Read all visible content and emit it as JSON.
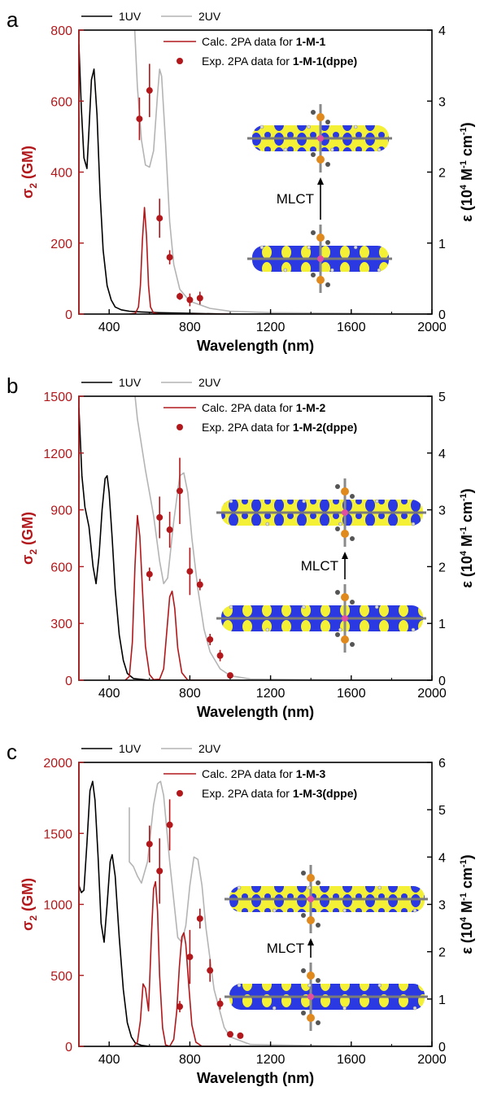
{
  "colors": {
    "red": "#b2181b",
    "uv1": "#000000",
    "uv2": "#b4b4b4",
    "orbital_blue": "#1f2fe0",
    "orbital_yellow": "#f2ef2a"
  },
  "chart_data": [
    {
      "type": "line",
      "panel_label": "a",
      "xlabel": "Wavelength (nm)",
      "ylabel_left": {
        "main": "σ",
        "sub": "2",
        "rest": " (GM)"
      },
      "ylabel_right": {
        "a": "ε (10",
        "s1": "4",
        "b": " M",
        "s2": "-1",
        "c": " cm",
        "s3": "-1",
        "d": ")"
      },
      "xlim": [
        250,
        2000
      ],
      "xticks": [
        400,
        800,
        1200,
        1600,
        2000
      ],
      "ylim_left": [
        0,
        800
      ],
      "yticks_left": [
        0,
        200,
        400,
        600,
        800
      ],
      "ylim_right": [
        0,
        4
      ],
      "yticks_right": [
        0,
        1,
        2,
        3,
        4
      ],
      "legend_top": [
        "1UV",
        "2UV"
      ],
      "legend_calc": {
        "text": "Calc. 2PA data for ",
        "bold": "1-M-1"
      },
      "legend_exp": {
        "text": "Exp. 2PA data for ",
        "bold": "1-M-1(dppe)"
      },
      "annotation": "MLCT",
      "series": [
        {
          "name": "1UV",
          "axis": "right",
          "x": [
            250,
            262,
            275,
            290,
            300,
            312,
            325,
            340,
            355,
            370,
            390,
            410,
            430,
            460,
            500,
            560,
            650,
            800,
            1000,
            2000
          ],
          "y": [
            3.8,
            2.9,
            2.2,
            2.05,
            2.6,
            3.3,
            3.45,
            2.8,
            1.7,
            0.9,
            0.4,
            0.2,
            0.1,
            0.06,
            0.04,
            0.03,
            0.02,
            0.01,
            0.0,
            0.0
          ]
        },
        {
          "name": "2UV",
          "axis": "right",
          "x": [
            500,
            520,
            540,
            560,
            580,
            600,
            620,
            640,
            650,
            660,
            680,
            700,
            720,
            750,
            800,
            900,
            1000,
            1200,
            1600,
            2000
          ],
          "y": [
            6.0,
            4.4,
            3.2,
            2.45,
            2.1,
            2.07,
            2.3,
            3.1,
            3.45,
            3.35,
            2.4,
            1.3,
            0.7,
            0.35,
            0.18,
            0.08,
            0.04,
            0.02,
            0.01,
            0.0
          ]
        },
        {
          "name": "Calc. 2PA data",
          "axis": "left",
          "x": [
            500,
            530,
            545,
            555,
            565,
            575,
            585,
            595,
            605,
            620,
            650,
            700,
            1000
          ],
          "y": [
            0,
            2,
            20,
            80,
            210,
            300,
            220,
            80,
            20,
            3,
            0,
            0,
            0
          ]
        },
        {
          "name": "Exp. 2PA data",
          "axis": "left",
          "kind": "scatter",
          "x": [
            550,
            600,
            650,
            700,
            750,
            800,
            850
          ],
          "y": [
            550,
            630,
            270,
            160,
            50,
            40,
            45
          ],
          "err": [
            60,
            75,
            55,
            20,
            10,
            18,
            18
          ]
        }
      ]
    },
    {
      "type": "line",
      "panel_label": "b",
      "xlabel": "Wavelength (nm)",
      "ylabel_left": {
        "main": "σ",
        "sub": "2",
        "rest": " (GM)"
      },
      "ylabel_right": {
        "a": "ε (10",
        "s1": "4",
        "b": " M",
        "s2": "-1",
        "c": " cm",
        "s3": "-1",
        "d": ")"
      },
      "xlim": [
        250,
        2000
      ],
      "xticks": [
        400,
        800,
        1200,
        1600,
        2000
      ],
      "ylim_left": [
        0,
        1500
      ],
      "yticks_left": [
        0,
        300,
        600,
        900,
        1200,
        1500
      ],
      "ylim_right": [
        0,
        5
      ],
      "yticks_right": [
        0,
        1,
        2,
        3,
        4,
        5
      ],
      "legend_top": [
        "1UV",
        "2UV"
      ],
      "legend_calc": {
        "text": "Calc. 2PA data for ",
        "bold": "1-M-2"
      },
      "legend_exp": {
        "text": "Exp. 2PA data for ",
        "bold": "1-M-2(dppe)"
      },
      "annotation": "MLCT",
      "series": [
        {
          "name": "1UV",
          "axis": "right",
          "x": [
            250,
            265,
            280,
            300,
            320,
            335,
            350,
            365,
            380,
            390,
            400,
            415,
            430,
            450,
            470,
            490,
            520,
            600,
            2000
          ],
          "y": [
            4.8,
            3.6,
            3.05,
            2.7,
            2.0,
            1.7,
            2.2,
            3.0,
            3.55,
            3.6,
            3.3,
            2.5,
            1.6,
            0.8,
            0.35,
            0.12,
            0.03,
            0.0,
            0.0
          ]
        },
        {
          "name": "2UV",
          "axis": "right",
          "x": [
            500,
            540,
            580,
            620,
            650,
            670,
            690,
            720,
            750,
            770,
            790,
            810,
            840,
            870,
            900,
            950,
            1000,
            1100,
            1600,
            2000
          ],
          "y": [
            6.0,
            4.6,
            3.7,
            2.9,
            2.1,
            1.7,
            1.8,
            2.8,
            3.6,
            3.65,
            3.3,
            2.5,
            1.6,
            0.9,
            0.5,
            0.2,
            0.08,
            0.02,
            0.0,
            0.0
          ]
        },
        {
          "name": "Calc. 2PA data",
          "axis": "left",
          "x": [
            480,
            500,
            515,
            528,
            540,
            552,
            565,
            580,
            600,
            620,
            650,
            670,
            685,
            700,
            712,
            725,
            740,
            760,
            790,
            1000
          ],
          "y": [
            0,
            20,
            200,
            600,
            870,
            760,
            480,
            180,
            30,
            3,
            5,
            60,
            250,
            440,
            470,
            380,
            170,
            40,
            0,
            0
          ]
        },
        {
          "name": "Exp. 2PA data",
          "axis": "left",
          "kind": "scatter",
          "x": [
            600,
            650,
            700,
            750,
            800,
            850,
            900,
            950,
            1000
          ],
          "y": [
            560,
            860,
            795,
            1000,
            575,
            505,
            215,
            130,
            25
          ],
          "err": [
            35,
            110,
            95,
            175,
            125,
            30,
            30,
            30,
            8
          ]
        }
      ]
    },
    {
      "type": "line",
      "panel_label": "c",
      "xlabel": "Wavelength (nm)",
      "ylabel_left": {
        "main": "σ",
        "sub": "2",
        "rest": " (GM)"
      },
      "ylabel_right": {
        "a": "ε (10",
        "s1": "4",
        "b": " M",
        "s2": "-1",
        "c": " cm",
        "s3": "-1",
        "d": ")"
      },
      "xlim": [
        250,
        2000
      ],
      "xticks": [
        400,
        800,
        1200,
        1600,
        2000
      ],
      "ylim_left": [
        0,
        2000
      ],
      "yticks_left": [
        0,
        500,
        1000,
        1500,
        2000
      ],
      "ylim_right": [
        0,
        6
      ],
      "yticks_right": [
        0,
        1,
        2,
        3,
        4,
        5,
        6
      ],
      "legend_top": [
        "1UV",
        "2UV"
      ],
      "legend_calc": {
        "text": "Calc. 2PA data for ",
        "bold": "1-M-3"
      },
      "legend_exp": {
        "text": "Exp. 2PA data for ",
        "bold": "1-M-3(dppe)"
      },
      "annotation": "MLCT",
      "series": [
        {
          "name": "1UV",
          "axis": "right",
          "x": [
            250,
            262,
            275,
            290,
            305,
            318,
            330,
            345,
            360,
            375,
            390,
            405,
            415,
            430,
            450,
            470,
            490,
            510,
            530,
            560,
            600,
            2000
          ],
          "y": [
            3.4,
            3.25,
            3.3,
            4.3,
            5.4,
            5.6,
            5.2,
            4.0,
            2.6,
            2.2,
            3.0,
            3.9,
            4.05,
            3.6,
            2.3,
            1.2,
            0.5,
            0.2,
            0.07,
            0.02,
            0.0,
            0.0
          ]
        },
        {
          "name": "2UV",
          "axis": "right",
          "x": [
            500,
            500,
            520,
            540,
            560,
            590,
            620,
            640,
            655,
            670,
            700,
            740,
            760,
            780,
            800,
            820,
            840,
            860,
            880,
            920,
            970,
            1000,
            1100,
            1600,
            2000
          ],
          "y": [
            5.05,
            3.9,
            3.8,
            3.6,
            3.45,
            3.9,
            5.1,
            5.55,
            5.6,
            5.3,
            3.9,
            2.3,
            2.2,
            2.55,
            3.4,
            4.0,
            3.95,
            3.4,
            2.5,
            1.2,
            0.4,
            0.2,
            0.04,
            0.0,
            0.0
          ]
        },
        {
          "name": "Calc. 2PA data",
          "axis": "left",
          "x": [
            520,
            540,
            555,
            568,
            580,
            595,
            610,
            620,
            630,
            640,
            650,
            665,
            680,
            700,
            720,
            735,
            748,
            760,
            770,
            780,
            795,
            810,
            830,
            860,
            1000
          ],
          "y": [
            0,
            30,
            180,
            440,
            410,
            250,
            800,
            1110,
            1160,
            950,
            500,
            130,
            10,
            0,
            50,
            250,
            560,
            770,
            800,
            720,
            420,
            150,
            30,
            0,
            0
          ]
        },
        {
          "name": "Exp. 2PA data",
          "axis": "left",
          "kind": "scatter",
          "x": [
            600,
            650,
            700,
            750,
            800,
            850,
            900,
            950,
            1000,
            1050
          ],
          "y": [
            1425,
            1235,
            1560,
            280,
            630,
            900,
            535,
            300,
            85,
            75
          ],
          "err": [
            130,
            230,
            180,
            40,
            190,
            70,
            80,
            40,
            10,
            10
          ]
        }
      ]
    }
  ]
}
